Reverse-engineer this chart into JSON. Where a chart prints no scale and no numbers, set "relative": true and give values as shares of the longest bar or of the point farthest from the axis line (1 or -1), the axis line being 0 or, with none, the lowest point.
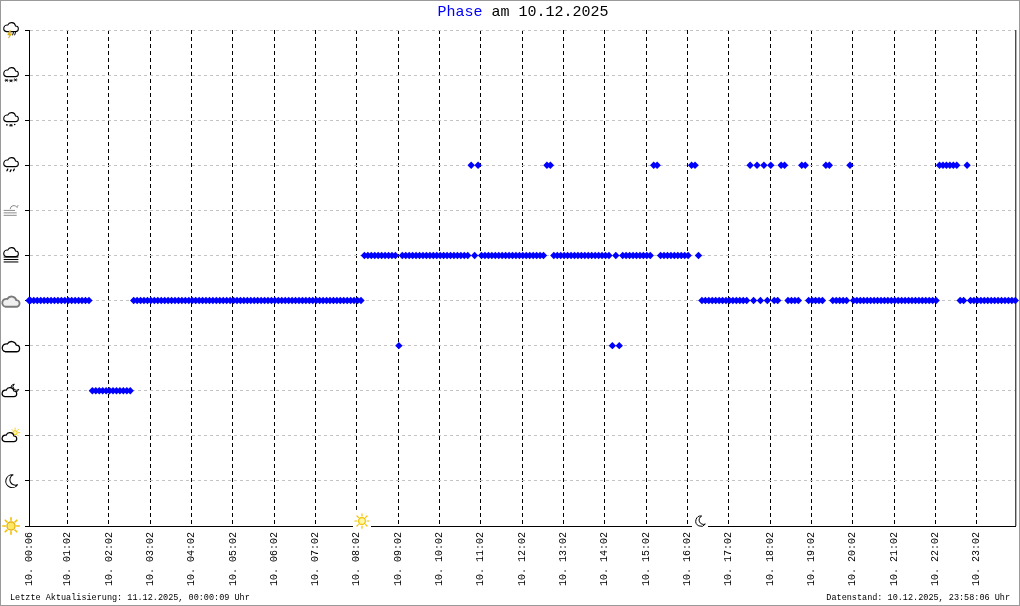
{
  "chart_data": {
    "type": "scatter",
    "title": "Phase am 10.12.2025",
    "annotations": [
      "Letzte Aktualisierung: 11.12.2025, 00:00:09 Uhr",
      "Datenstand: 10.12.2025, 23:58:06 Uhr"
    ],
    "x": [
      "2025-12-10T00:06",
      "2025-12-10T00:08",
      "2025-12-10T00:13",
      "2025-12-10T00:18",
      "2025-12-10T00:23",
      "2025-12-10T00:28",
      "2025-12-10T00:33",
      "2025-12-10T00:38",
      "2025-12-10T00:43",
      "2025-12-10T00:48",
      "2025-12-10T00:53",
      "2025-12-10T00:58",
      "2025-12-10T01:03",
      "2025-12-10T01:08",
      "2025-12-10T01:13",
      "2025-12-10T01:18",
      "2025-12-10T01:23",
      "2025-12-10T01:28",
      "2025-12-10T01:33",
      "2025-12-10T01:38",
      "2025-12-10T01:43",
      "2025-12-10T01:48",
      "2025-12-10T01:53",
      "2025-12-10T01:58",
      "2025-12-10T02:03",
      "2025-12-10T02:08",
      "2025-12-10T02:13",
      "2025-12-10T02:18",
      "2025-12-10T02:23",
      "2025-12-10T02:28",
      "2025-12-10T02:33",
      "2025-12-10T02:38",
      "2025-12-10T02:43",
      "2025-12-10T02:48",
      "2025-12-10T02:53",
      "2025-12-10T02:58",
      "2025-12-10T03:03",
      "2025-12-10T03:08",
      "2025-12-10T03:13",
      "2025-12-10T03:18",
      "2025-12-10T03:23",
      "2025-12-10T03:28",
      "2025-12-10T03:33",
      "2025-12-10T03:38",
      "2025-12-10T03:43",
      "2025-12-10T03:48",
      "2025-12-10T03:53",
      "2025-12-10T03:58",
      "2025-12-10T04:03",
      "2025-12-10T04:08",
      "2025-12-10T04:13",
      "2025-12-10T04:18",
      "2025-12-10T04:23",
      "2025-12-10T04:28",
      "2025-12-10T04:33",
      "2025-12-10T04:38",
      "2025-12-10T04:43",
      "2025-12-10T04:48",
      "2025-12-10T04:53",
      "2025-12-10T04:58",
      "2025-12-10T05:03",
      "2025-12-10T05:08",
      "2025-12-10T05:13",
      "2025-12-10T05:18",
      "2025-12-10T05:23",
      "2025-12-10T05:28",
      "2025-12-10T05:33",
      "2025-12-10T05:38",
      "2025-12-10T05:43",
      "2025-12-10T05:48",
      "2025-12-10T05:53",
      "2025-12-10T05:58",
      "2025-12-10T06:03",
      "2025-12-10T06:08",
      "2025-12-10T06:13",
      "2025-12-10T06:18",
      "2025-12-10T06:23",
      "2025-12-10T06:28",
      "2025-12-10T06:33",
      "2025-12-10T06:38",
      "2025-12-10T06:43",
      "2025-12-10T06:48",
      "2025-12-10T06:53",
      "2025-12-10T06:58",
      "2025-12-10T07:03",
      "2025-12-10T07:08",
      "2025-12-10T07:13",
      "2025-12-10T07:18",
      "2025-12-10T07:23",
      "2025-12-10T07:28",
      "2025-12-10T07:33",
      "2025-12-10T07:38",
      "2025-12-10T07:43",
      "2025-12-10T07:48",
      "2025-12-10T07:53",
      "2025-12-10T07:58",
      "2025-12-10T08:03",
      "2025-12-10T08:08",
      "2025-12-10T08:13",
      "2025-12-10T08:18",
      "2025-12-10T08:23",
      "2025-12-10T08:28",
      "2025-12-10T08:33",
      "2025-12-10T08:38",
      "2025-12-10T08:43",
      "2025-12-10T08:48",
      "2025-12-10T08:53",
      "2025-12-10T08:58",
      "2025-12-10T09:03",
      "2025-12-10T09:08",
      "2025-12-10T09:13",
      "2025-12-10T09:18",
      "2025-12-10T09:23",
      "2025-12-10T09:28",
      "2025-12-10T09:33",
      "2025-12-10T09:38",
      "2025-12-10T09:43",
      "2025-12-10T09:48",
      "2025-12-10T09:53",
      "2025-12-10T09:58",
      "2025-12-10T10:03",
      "2025-12-10T10:08",
      "2025-12-10T10:13",
      "2025-12-10T10:18",
      "2025-12-10T10:23",
      "2025-12-10T10:28",
      "2025-12-10T10:33",
      "2025-12-10T10:38",
      "2025-12-10T10:43",
      "2025-12-10T10:48",
      "2025-12-10T10:53",
      "2025-12-10T10:58",
      "2025-12-10T11:03",
      "2025-12-10T11:08",
      "2025-12-10T11:13",
      "2025-12-10T11:18",
      "2025-12-10T11:23",
      "2025-12-10T11:28",
      "2025-12-10T11:33",
      "2025-12-10T11:38",
      "2025-12-10T11:43",
      "2025-12-10T11:48",
      "2025-12-10T11:53",
      "2025-12-10T11:58",
      "2025-12-10T12:03",
      "2025-12-10T12:08",
      "2025-12-10T12:13",
      "2025-12-10T12:18",
      "2025-12-10T12:23",
      "2025-12-10T12:28",
      "2025-12-10T12:33",
      "2025-12-10T12:38",
      "2025-12-10T12:43",
      "2025-12-10T12:48",
      "2025-12-10T12:53",
      "2025-12-10T12:58",
      "2025-12-10T13:03",
      "2025-12-10T13:08",
      "2025-12-10T13:13",
      "2025-12-10T13:18",
      "2025-12-10T13:23",
      "2025-12-10T13:28",
      "2025-12-10T13:33",
      "2025-12-10T13:38",
      "2025-12-10T13:43",
      "2025-12-10T13:48",
      "2025-12-10T13:53",
      "2025-12-10T13:58",
      "2025-12-10T14:03",
      "2025-12-10T14:08",
      "2025-12-10T14:13",
      "2025-12-10T14:18",
      "2025-12-10T14:23",
      "2025-12-10T14:28",
      "2025-12-10T14:33",
      "2025-12-10T14:38",
      "2025-12-10T14:43",
      "2025-12-10T14:48",
      "2025-12-10T14:53",
      "2025-12-10T14:58",
      "2025-12-10T15:03",
      "2025-12-10T15:08",
      "2025-12-10T15:13",
      "2025-12-10T15:18",
      "2025-12-10T15:23",
      "2025-12-10T15:28",
      "2025-12-10T15:33",
      "2025-12-10T15:38",
      "2025-12-10T15:43",
      "2025-12-10T15:48",
      "2025-12-10T15:53",
      "2025-12-10T15:58",
      "2025-12-10T16:03",
      "2025-12-10T16:08",
      "2025-12-10T16:13",
      "2025-12-10T16:18",
      "2025-12-10T16:23",
      "2025-12-10T16:28",
      "2025-12-10T16:33",
      "2025-12-10T16:38",
      "2025-12-10T16:43",
      "2025-12-10T16:48",
      "2025-12-10T16:53",
      "2025-12-10T16:58",
      "2025-12-10T17:03",
      "2025-12-10T17:08",
      "2025-12-10T17:13",
      "2025-12-10T17:18",
      "2025-12-10T17:23",
      "2025-12-10T17:28",
      "2025-12-10T17:33",
      "2025-12-10T17:38",
      "2025-12-10T17:43",
      "2025-12-10T17:48",
      "2025-12-10T17:53",
      "2025-12-10T17:58",
      "2025-12-10T18:03",
      "2025-12-10T18:08",
      "2025-12-10T18:13",
      "2025-12-10T18:18",
      "2025-12-10T18:23",
      "2025-12-10T18:28",
      "2025-12-10T18:33",
      "2025-12-10T18:38",
      "2025-12-10T18:43",
      "2025-12-10T18:48",
      "2025-12-10T18:53",
      "2025-12-10T18:58",
      "2025-12-10T19:03",
      "2025-12-10T19:08",
      "2025-12-10T19:13",
      "2025-12-10T19:18",
      "2025-12-10T19:23",
      "2025-12-10T19:28",
      "2025-12-10T19:33",
      "2025-12-10T19:38",
      "2025-12-10T19:43",
      "2025-12-10T19:48",
      "2025-12-10T19:53",
      "2025-12-10T19:58",
      "2025-12-10T20:03",
      "2025-12-10T20:08",
      "2025-12-10T20:13",
      "2025-12-10T20:18",
      "2025-12-10T20:23",
      "2025-12-10T20:28",
      "2025-12-10T20:33",
      "2025-12-10T20:38",
      "2025-12-10T20:43",
      "2025-12-10T20:48",
      "2025-12-10T20:53",
      "2025-12-10T20:58",
      "2025-12-10T21:03",
      "2025-12-10T21:08",
      "2025-12-10T21:13",
      "2025-12-10T21:18",
      "2025-12-10T21:23",
      "2025-12-10T21:28",
      "2025-12-10T21:33",
      "2025-12-10T21:38",
      "2025-12-10T21:43",
      "2025-12-10T21:48",
      "2025-12-10T21:53",
      "2025-12-10T21:58",
      "2025-12-10T22:03",
      "2025-12-10T22:08",
      "2025-12-10T22:13",
      "2025-12-10T22:18",
      "2025-12-10T22:23",
      "2025-12-10T22:28",
      "2025-12-10T22:33",
      "2025-12-10T22:38",
      "2025-12-10T22:43",
      "2025-12-10T22:48",
      "2025-12-10T22:53",
      "2025-12-10T22:58",
      "2025-12-10T23:03",
      "2025-12-10T23:08",
      "2025-12-10T23:13",
      "2025-12-10T23:18",
      "2025-12-10T23:23",
      "2025-12-10T23:28",
      "2025-12-10T23:33",
      "2025-12-10T23:38",
      "2025-12-10T23:43",
      "2025-12-10T23:48",
      "2025-12-10T23:53",
      "2025-12-10T23:58"
    ],
    "values": [
      0.625,
      0.625,
      0.625,
      0.625,
      0.625,
      0.625,
      0.625,
      0.625,
      0.625,
      0.625,
      0.625,
      0.625,
      0.625,
      0.625,
      0.625,
      0.625,
      0.625,
      0.625,
      0.625,
      0.375,
      0.375,
      0.375,
      0.375,
      0.375,
      0.375,
      0.375,
      0.375,
      0.375,
      0.375,
      0.375,
      0.375,
      0.625,
      0.625,
      0.625,
      0.625,
      0.625,
      0.625,
      0.625,
      0.625,
      0.625,
      0.625,
      0.625,
      0.625,
      0.625,
      0.625,
      0.625,
      0.625,
      0.625,
      0.625,
      0.625,
      0.625,
      0.625,
      0.625,
      0.625,
      0.625,
      0.625,
      0.625,
      0.625,
      0.625,
      0.625,
      0.625,
      0.625,
      0.625,
      0.625,
      0.625,
      0.625,
      0.625,
      0.625,
      0.625,
      0.625,
      0.625,
      0.625,
      0.625,
      0.625,
      0.625,
      0.625,
      0.625,
      0.625,
      0.625,
      0.625,
      0.625,
      0.625,
      0.625,
      0.625,
      0.625,
      0.625,
      0.625,
      0.625,
      0.625,
      0.625,
      0.625,
      0.625,
      0.625,
      0.625,
      0.625,
      0.625,
      0.625,
      0.625,
      0.75,
      0.75,
      0.75,
      0.75,
      0.75,
      0.75,
      0.75,
      0.75,
      0.75,
      0.75,
      0.5,
      0.75,
      0.75,
      0.75,
      0.75,
      0.75,
      0.75,
      0.75,
      0.75,
      0.75,
      0.75,
      0.75,
      0.75,
      0.75,
      0.75,
      0.75,
      0.75,
      0.75,
      0.75,
      0.75,
      0.75,
      1,
      0.75,
      1,
      0.75,
      0.75,
      0.75,
      0.75,
      0.75,
      0.75,
      0.75,
      0.75,
      0.75,
      0.75,
      0.75,
      0.75,
      0.75,
      0.75,
      0.75,
      0.75,
      0.75,
      0.75,
      0.75,
      1,
      1,
      0.75,
      0.75,
      0.75,
      0.75,
      0.75,
      0.75,
      0.75,
      0.75,
      0.75,
      0.75,
      0.75,
      0.75,
      0.75,
      0.75,
      0.75,
      0.75,
      0.75,
      0.5,
      0.75,
      0.5,
      0.75,
      0.75,
      0.75,
      0.75,
      0.75,
      0.75,
      0.75,
      0.75,
      0.75,
      1,
      1,
      0.75,
      0.75,
      0.75,
      0.75,
      0.75,
      0.75,
      0.75,
      0.75,
      0.75,
      1,
      1,
      0.75,
      0.625,
      0.625,
      0.625,
      0.625,
      0.625,
      0.625,
      0.625,
      0.625,
      0.625,
      0.625,
      0.625,
      0.625,
      0.625,
      0.625,
      1,
      0.625,
      1,
      0.625,
      1,
      0.625,
      1,
      0.625,
      0.625,
      1,
      1,
      0.625,
      0.625,
      0.625,
      0.625,
      1,
      1,
      0.625,
      0.625,
      0.625,
      0.625,
      0.625,
      1,
      1,
      0.625,
      0.625,
      0.625,
      0.625,
      0.625,
      1,
      0.625,
      0.625,
      0.625,
      0.625,
      0.625,
      0.625,
      0.625,
      0.625,
      0.625,
      0.625,
      0.625,
      0.625,
      0.625,
      0.625,
      0.625,
      0.625,
      0.625,
      0.625,
      0.625,
      0.625,
      0.625,
      0.625,
      0.625,
      0.625,
      0.625,
      1,
      1,
      1,
      1,
      1,
      1,
      0.625,
      0.625,
      1,
      0.625,
      0.625,
      0.625,
      0.625,
      0.625,
      0.625,
      0.625,
      0.625,
      0.625,
      0.625,
      0.625,
      0.625,
      0.625,
      0.625
    ],
    "relative": true,
    "color": "#0000ff",
    "marker": "diamond",
    "xlim": [
      "2025-12-10T00:06",
      "2025-12-10T23:58"
    ],
    "xticks": [
      {
        "value": "2025-12-10T00:06",
        "label": "10. 00:06"
      },
      {
        "value": "2025-12-10T01:02",
        "label": "10. 01:02"
      },
      {
        "value": "2025-12-10T02:02",
        "label": "10. 02:02"
      },
      {
        "value": "2025-12-10T03:02",
        "label": "10. 03:02"
      },
      {
        "value": "2025-12-10T04:02",
        "label": "10. 04:02"
      },
      {
        "value": "2025-12-10T05:02",
        "label": "10. 05:02"
      },
      {
        "value": "2025-12-10T06:02",
        "label": "10. 06:02"
      },
      {
        "value": "2025-12-10T07:02",
        "label": "10. 07:02"
      },
      {
        "value": "2025-12-10T08:02",
        "label": "10. 08:02"
      },
      {
        "value": "2025-12-10T09:02",
        "label": "10. 09:02"
      },
      {
        "value": "2025-12-10T10:02",
        "label": "10. 10:02"
      },
      {
        "value": "2025-12-10T11:02",
        "label": "10. 11:02"
      },
      {
        "value": "2025-12-10T12:02",
        "label": "10. 12:02"
      },
      {
        "value": "2025-12-10T13:02",
        "label": "10. 13:02"
      },
      {
        "value": "2025-12-10T14:02",
        "label": "10. 14:02"
      },
      {
        "value": "2025-12-10T15:02",
        "label": "10. 15:02"
      },
      {
        "value": "2025-12-10T16:02",
        "label": "10. 16:02"
      },
      {
        "value": "2025-12-10T17:02",
        "label": "10. 17:02"
      },
      {
        "value": "2025-12-10T18:02",
        "label": "10. 18:02"
      },
      {
        "value": "2025-12-10T19:02",
        "label": "10. 19:02"
      },
      {
        "value": "2025-12-10T20:02",
        "label": "10. 20:02"
      },
      {
        "value": "2025-12-10T21:02",
        "label": "10. 21:02"
      },
      {
        "value": "2025-12-10T22:02",
        "label": "10. 22:02"
      },
      {
        "value": "2025-12-10T23:02",
        "label": "10. 23:02"
      }
    ],
    "grid": true
  }
}
